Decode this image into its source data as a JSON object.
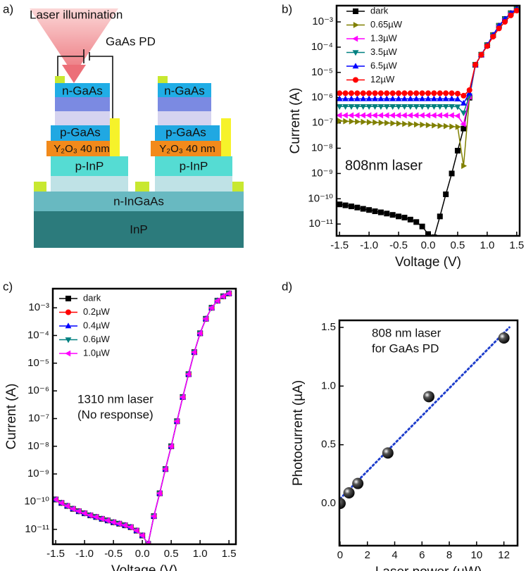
{
  "diagram": {
    "panel_label": "a)",
    "laser": "Laser illumination",
    "device": "GaAs PD",
    "left_stack": {
      "n_layer": "n-GaAs",
      "p_layer": "p-GaAs",
      "oxide": "Y₂O₃ 40 nm",
      "p_inp": "p-InP"
    },
    "right_stack": {
      "n_layer": "n-GaAs",
      "p_layer": "p-GaAs",
      "oxide": "Y₂O₃ 40 nm",
      "p_inp": "p-InP"
    },
    "buffer": "n-InGaAs",
    "substrate": "InP"
  },
  "chart_data": [
    {
      "type": "line",
      "panel_label": "b)",
      "x_label": "Voltage (V)",
      "y_label": "Current (A)",
      "annotation": [
        "808nm laser"
      ],
      "ylog": true,
      "legend": "upper left",
      "xlim": [
        -1.55,
        1.55
      ],
      "ylim": [
        3.4e-12,
        0.0044
      ],
      "xticks": [
        -1.5,
        {
          "value": -1.0,
          "label": "-1.0"
        },
        -0.5,
        {
          "value": 0.0,
          "label": "0.0"
        },
        0.5,
        {
          "value": 1.0,
          "label": "1.0"
        },
        1.5
      ],
      "yticks": [
        {
          "value": 1e-11,
          "label": "10⁻¹¹"
        },
        {
          "value": 1e-10,
          "label": "10⁻¹⁰"
        },
        {
          "value": 1e-09,
          "label": "10⁻⁹"
        },
        {
          "value": 1e-08,
          "label": "10⁻⁸"
        },
        {
          "value": 1e-07,
          "label": "10⁻⁷"
        },
        {
          "value": 1e-06,
          "label": "10⁻⁶"
        },
        {
          "value": 1e-05,
          "label": "10⁻⁵"
        },
        {
          "value": 0.0001,
          "label": "10⁻⁴"
        },
        {
          "value": 0.001,
          "label": "10⁻³"
        }
      ],
      "x": [
        -1.5,
        -1.4,
        -1.3,
        -1.2,
        -1.1,
        -1.0,
        -0.9,
        -0.8,
        -0.7,
        -0.6,
        -0.5,
        -0.4,
        -0.3,
        -0.2,
        -0.1,
        0.0,
        0.1,
        0.2,
        0.3,
        0.4,
        0.5,
        0.6,
        0.7,
        0.8,
        0.9,
        1.0,
        1.1,
        1.2,
        1.3,
        1.4,
        1.5
      ],
      "series": [
        {
          "name": "dark",
          "color": "#000000",
          "marker": "square",
          "values": [
            6e-11,
            5.5e-11,
            5e-11,
            4.5e-11,
            4e-11,
            3.6e-11,
            3.2e-11,
            2.9e-11,
            2.6e-11,
            2.3e-11,
            2e-11,
            1.8e-11,
            1.5e-11,
            1.2e-11,
            8e-12,
            4e-12,
            3e-12,
            2e-11,
            1.5e-10,
            1e-09,
            8e-09,
            6e-08,
            1e-06,
            2e-05,
            5e-05,
            0.00012,
            0.0003,
            0.0007,
            0.0013,
            0.0022,
            0.0032
          ]
        },
        {
          "name": "0.65µW",
          "color": "#808000",
          "marker": "right",
          "values": [
            1.2e-07,
            1.17e-07,
            1.15e-07,
            1.12e-07,
            1.1e-07,
            1.07e-07,
            1.05e-07,
            1.02e-07,
            1e-07,
            9.7e-08,
            9.5e-08,
            9.2e-08,
            9e-08,
            8.7e-08,
            8.5e-08,
            8.2e-08,
            8e-08,
            7.7e-08,
            7.5e-08,
            7.2e-08,
            7e-08,
            2e-09,
            1e-06,
            2e-05,
            5e-05,
            0.00012,
            0.0003,
            0.0007,
            0.0013,
            0.0022,
            0.0032
          ]
        },
        {
          "name": "1.3µW",
          "color": "#ff00ff",
          "marker": "left",
          "values": [
            2e-07,
            2e-07,
            2e-07,
            2e-07,
            2e-07,
            2e-07,
            2e-07,
            2e-07,
            2e-07,
            2e-07,
            2e-07,
            2e-07,
            2e-07,
            2e-07,
            2e-07,
            2e-07,
            2e-07,
            2e-07,
            2e-07,
            2e-07,
            1.9e-07,
            9e-08,
            1.1e-06,
            2e-05,
            5e-05,
            0.00012,
            0.0003,
            0.0007,
            0.0013,
            0.0022,
            0.0032
          ]
        },
        {
          "name": "3.5µW",
          "color": "#008080",
          "marker": "down",
          "values": [
            4.5e-07,
            4.5e-07,
            4.5e-07,
            4.5e-07,
            4.5e-07,
            4.5e-07,
            4.5e-07,
            4.5e-07,
            4.5e-07,
            4.5e-07,
            4.5e-07,
            4.5e-07,
            4.5e-07,
            4.5e-07,
            4.5e-07,
            4.5e-07,
            4.5e-07,
            4.5e-07,
            4.5e-07,
            4.5e-07,
            4.4e-07,
            2.5e-07,
            1.2e-06,
            2e-05,
            5e-05,
            0.00012,
            0.0003,
            0.0007,
            0.0013,
            0.0022,
            0.0032
          ]
        },
        {
          "name": "6.5µW",
          "color": "#0000ff",
          "marker": "up",
          "values": [
            9e-07,
            9e-07,
            9e-07,
            9e-07,
            9e-07,
            9e-07,
            9e-07,
            9e-07,
            9e-07,
            9e-07,
            9e-07,
            9e-07,
            9e-07,
            9e-07,
            9e-07,
            9e-07,
            9e-07,
            9e-07,
            9e-07,
            9e-07,
            8.8e-07,
            6e-07,
            1.5e-06,
            2e-05,
            5e-05,
            0.00012,
            0.0003,
            0.0007,
            0.0013,
            0.0022,
            0.0032
          ]
        },
        {
          "name": "12µW",
          "color": "#ff0000",
          "marker": "circle",
          "values": [
            1.5e-06,
            1.5e-06,
            1.5e-06,
            1.5e-06,
            1.5e-06,
            1.5e-06,
            1.5e-06,
            1.5e-06,
            1.5e-06,
            1.5e-06,
            1.5e-06,
            1.5e-06,
            1.5e-06,
            1.5e-06,
            1.5e-06,
            1.5e-06,
            1.5e-06,
            1.5e-06,
            1.5e-06,
            1.5e-06,
            1.45e-06,
            1.2e-06,
            2e-06,
            2e-05,
            5e-05,
            0.00011,
            0.00026,
            0.00055,
            0.001,
            0.0018,
            0.0028
          ]
        }
      ]
    },
    {
      "type": "line",
      "panel_label": "c)",
      "x_label": "Voltage (V)",
      "y_label": "Current (A)",
      "annotation": [
        "1310 nm laser",
        "(No response)"
      ],
      "ylog": true,
      "legend": "upper left",
      "xlim": [
        -1.55,
        1.62
      ],
      "ylim": [
        2.9e-12,
        0.0049
      ],
      "xticks": [
        -1.5,
        {
          "value": -1.0,
          "label": "-1.0"
        },
        -0.5,
        {
          "value": 0.0,
          "label": "0.0"
        },
        0.5,
        {
          "value": 1.0,
          "label": "1.0"
        },
        1.5
      ],
      "yticks": [
        {
          "value": 1e-11,
          "label": "10⁻¹¹"
        },
        {
          "value": 1e-10,
          "label": "10⁻¹⁰"
        },
        {
          "value": 1e-09,
          "label": "10⁻⁹"
        },
        {
          "value": 1e-08,
          "label": "10⁻⁸"
        },
        {
          "value": 1e-07,
          "label": "10⁻⁷"
        },
        {
          "value": 1e-06,
          "label": "10⁻⁶"
        },
        {
          "value": 1e-05,
          "label": "10⁻⁵"
        },
        {
          "value": 0.0001,
          "label": "10⁻⁴"
        },
        {
          "value": 0.001,
          "label": "10⁻³"
        }
      ],
      "x": [
        -1.5,
        -1.4,
        -1.3,
        -1.2,
        -1.1,
        -1.0,
        -0.9,
        -0.8,
        -0.7,
        -0.6,
        -0.5,
        -0.4,
        -0.3,
        -0.2,
        -0.1,
        0.0,
        0.1,
        0.2,
        0.3,
        0.4,
        0.5,
        0.6,
        0.7,
        0.8,
        0.9,
        1.0,
        1.1,
        1.2,
        1.3,
        1.4,
        1.5
      ],
      "series": [
        {
          "name": "dark",
          "color": "#000000",
          "marker": "square",
          "values": [
            1.2e-10,
            9e-11,
            7e-11,
            5.5e-11,
            4.5e-11,
            3.8e-11,
            3.2e-11,
            2.8e-11,
            2.4e-11,
            2.1e-11,
            1.8e-11,
            1.6e-11,
            1.4e-11,
            1.2e-11,
            9e-12,
            6e-12,
            3e-12,
            3e-11,
            2e-10,
            1.5e-09,
            1e-08,
            8e-08,
            6e-07,
            4e-06,
            2.5e-05,
            0.00012,
            0.0004,
            0.001,
            0.0018,
            0.0026,
            0.0033
          ]
        },
        {
          "name": "0.2µW",
          "color": "#ff0000",
          "marker": "circle",
          "values": [
            1.2e-10,
            9e-11,
            7e-11,
            5.5e-11,
            4.5e-11,
            3.8e-11,
            3.2e-11,
            2.8e-11,
            2.4e-11,
            2.1e-11,
            1.8e-11,
            1.6e-11,
            1.4e-11,
            1.2e-11,
            9e-12,
            6e-12,
            3e-12,
            3e-11,
            2e-10,
            1.5e-09,
            1e-08,
            8e-08,
            6e-07,
            4e-06,
            2.5e-05,
            0.00012,
            0.0004,
            0.001,
            0.0018,
            0.0026,
            0.0033
          ]
        },
        {
          "name": "0.4µW",
          "color": "#0000ff",
          "marker": "up",
          "values": [
            1.2e-10,
            9e-11,
            7e-11,
            5.5e-11,
            4.5e-11,
            3.8e-11,
            3.2e-11,
            2.8e-11,
            2.4e-11,
            2.1e-11,
            1.8e-11,
            1.6e-11,
            1.4e-11,
            1.2e-11,
            9e-12,
            6e-12,
            3e-12,
            3e-11,
            2e-10,
            1.5e-09,
            1e-08,
            8e-08,
            6e-07,
            4e-06,
            2.5e-05,
            0.00012,
            0.0004,
            0.001,
            0.0018,
            0.0026,
            0.0033
          ]
        },
        {
          "name": "0.6µW",
          "color": "#008080",
          "marker": "down",
          "values": [
            1.2e-10,
            9e-11,
            7e-11,
            5.5e-11,
            4.5e-11,
            3.8e-11,
            3.2e-11,
            2.8e-11,
            2.4e-11,
            2.1e-11,
            1.8e-11,
            1.6e-11,
            1.4e-11,
            1.2e-11,
            9e-12,
            6e-12,
            3e-12,
            3e-11,
            2e-10,
            1.5e-09,
            1e-08,
            8e-08,
            6e-07,
            4e-06,
            2.5e-05,
            0.00012,
            0.0004,
            0.001,
            0.0018,
            0.0026,
            0.0033
          ]
        },
        {
          "name": "1.0µW",
          "color": "#ff00ff",
          "marker": "left",
          "values": [
            1.2e-10,
            9e-11,
            7e-11,
            5.5e-11,
            4.5e-11,
            3.8e-11,
            3.2e-11,
            2.8e-11,
            2.4e-11,
            2.1e-11,
            1.8e-11,
            1.6e-11,
            1.4e-11,
            1.2e-11,
            9e-12,
            6e-12,
            3e-12,
            3e-11,
            2e-10,
            1.5e-09,
            1e-08,
            8e-08,
            6e-07,
            4e-06,
            2.5e-05,
            0.00012,
            0.0004,
            0.001,
            0.0018,
            0.0026,
            0.0033
          ]
        }
      ]
    },
    {
      "type": "scatter",
      "panel_label": "d)",
      "x_label": "Laser power (µW)",
      "y_label": "Photocurrent (µA)",
      "annotation": [
        "808 nm laser",
        "for GaAs PD"
      ],
      "ylog": false,
      "xlim": [
        -0.05,
        13
      ],
      "ylim": [
        -0.36,
        1.56
      ],
      "xticks": [
        0,
        2,
        4,
        6,
        8,
        10,
        12
      ],
      "yticks": [
        {
          "value": 0.0,
          "label": "0.0"
        },
        0.5,
        {
          "value": 1.0,
          "label": "1.0"
        },
        1.5
      ],
      "x": [
        0,
        0.65,
        1.3,
        3.5,
        6.5,
        12
      ],
      "series": [
        {
          "color": "#000000",
          "values": [
            0,
            0.09,
            0.17,
            0.43,
            0.91,
            1.41
          ]
        }
      ],
      "fit": {
        "color": "#1f3fcc",
        "x": [
          0,
          12.4
        ],
        "values": [
          0.04,
          1.5
        ]
      }
    }
  ]
}
